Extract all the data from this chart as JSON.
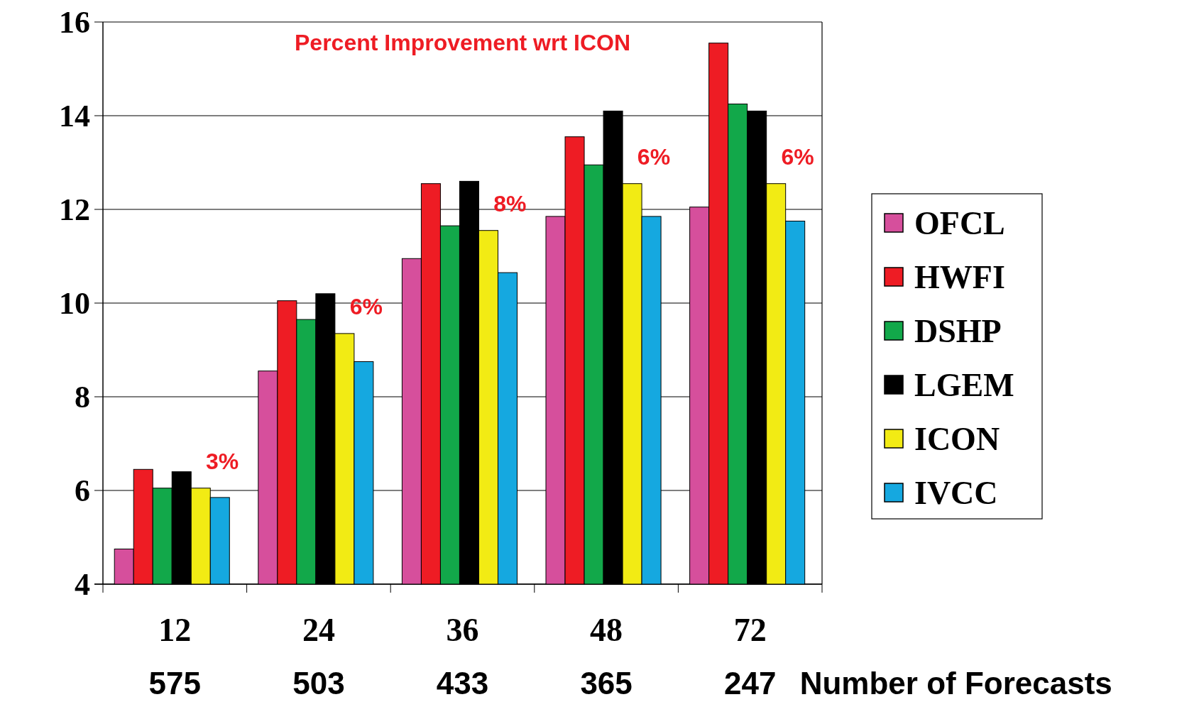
{
  "chart_data": {
    "type": "bar",
    "xlabel": "Number of Forecasts",
    "categories": [
      "12\n575",
      "24\n503",
      "36\n433",
      "48\n365",
      "72\n247"
    ],
    "series": [
      {
        "name": "OFCL",
        "color": "#d64f9c",
        "values": [
          4.75,
          8.55,
          10.95,
          11.85,
          12.05
        ]
      },
      {
        "name": "HWFI",
        "color": "#ee1c24",
        "values": [
          6.45,
          10.05,
          12.55,
          13.55,
          15.55
        ]
      },
      {
        "name": "DSHP",
        "color": "#12a84a",
        "values": [
          6.05,
          9.65,
          11.65,
          12.95,
          14.25
        ]
      },
      {
        "name": "LGEM",
        "color": "#000000",
        "values": [
          6.4,
          10.2,
          12.6,
          14.1,
          14.1
        ]
      },
      {
        "name": "ICON",
        "color": "#f2eb14",
        "values": [
          6.05,
          9.35,
          11.55,
          12.55,
          12.55
        ]
      },
      {
        "name": "IVCC",
        "color": "#15a8e0",
        "values": [
          5.85,
          8.75,
          10.65,
          11.85,
          11.75
        ]
      }
    ],
    "ylim": [
      4,
      16
    ],
    "yticks": [
      4,
      6,
      8,
      10,
      12,
      14,
      16
    ],
    "grid": "y",
    "legend": "right",
    "annotations": [
      "Percent  Improvement  wrt ICON",
      {
        "text": "3%",
        "x": "12\n575",
        "y": 6.05
      },
      {
        "text": "6%",
        "x": "24\n503",
        "y": 9.35
      },
      {
        "text": "8%",
        "x": "36\n433",
        "y": 11.55
      },
      {
        "text": "6%",
        "x": "48\n365",
        "y": 12.55
      },
      {
        "text": "6%",
        "x": "72\n247",
        "y": 12.55
      }
    ]
  }
}
